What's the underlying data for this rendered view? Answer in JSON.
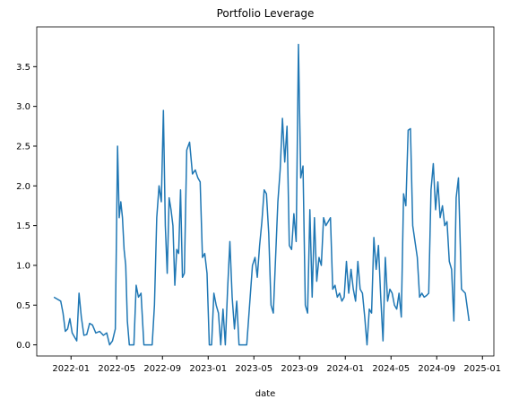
{
  "chart_data": {
    "type": "line",
    "title": "Portfolio Leverage",
    "x_label": "date",
    "x": [
      "2021-11",
      "2021-12",
      "2021-12",
      "2021-12",
      "2021-12",
      "2021-12",
      "2022-01",
      "2022-01",
      "2022-01",
      "2022-01",
      "2022-01",
      "2022-02",
      "2022-02",
      "2022-02",
      "2022-02",
      "2022-03",
      "2022-03",
      "2022-03",
      "2022-04",
      "2022-04",
      "2022-04",
      "2022-04",
      "2022-05",
      "2022-05",
      "2022-05",
      "2022-05",
      "2022-05",
      "2022-05",
      "2022-05",
      "2022-06",
      "2022-06",
      "2022-06",
      "2022-06",
      "2022-06",
      "2022-07",
      "2022-07",
      "2022-07",
      "2022-07",
      "2022-08",
      "2022-08",
      "2022-08",
      "2022-08",
      "2022-08",
      "2022-09",
      "2022-09",
      "2022-09",
      "2022-09",
      "2022-09",
      "2022-09",
      "2022-10",
      "2022-10",
      "2022-10",
      "2022-10",
      "2022-10",
      "2022-10",
      "2022-11",
      "2022-11",
      "2022-11",
      "2022-11",
      "2022-12",
      "2022-12",
      "2022-12",
      "2022-12",
      "2022-12",
      "2023-01",
      "2023-01",
      "2023-01",
      "2023-01",
      "2023-01",
      "2023-02",
      "2023-02",
      "2023-02",
      "2023-02",
      "2023-02",
      "2023-03",
      "2023-03",
      "2023-03",
      "2023-03",
      "2023-03",
      "2023-04",
      "2023-04",
      "2023-04",
      "2023-04",
      "2023-05",
      "2023-05",
      "2023-05",
      "2023-05",
      "2023-05",
      "2023-06",
      "2023-06",
      "2023-06",
      "2023-06",
      "2023-06",
      "2023-07",
      "2023-07",
      "2023-07",
      "2023-07",
      "2023-07",
      "2023-08",
      "2023-08",
      "2023-08",
      "2023-08",
      "2023-08",
      "2023-09",
      "2023-09",
      "2023-09",
      "2023-09",
      "2023-09",
      "2023-10",
      "2023-10",
      "2023-10",
      "2023-10",
      "2023-10",
      "2023-11",
      "2023-11",
      "2023-11",
      "2023-11",
      "2023-11",
      "2023-12",
      "2023-12",
      "2023-12",
      "2023-12",
      "2023-12",
      "2024-01",
      "2024-01",
      "2024-01",
      "2024-01",
      "2024-01",
      "2024-02",
      "2024-02",
      "2024-02",
      "2024-02",
      "2024-02",
      "2024-03",
      "2024-03",
      "2024-03",
      "2024-03",
      "2024-03",
      "2024-04",
      "2024-04",
      "2024-04",
      "2024-04",
      "2024-04",
      "2024-05",
      "2024-05",
      "2024-05",
      "2024-05",
      "2024-05",
      "2024-06",
      "2024-06",
      "2024-06",
      "2024-06",
      "2024-06",
      "2024-07",
      "2024-07",
      "2024-07",
      "2024-07",
      "2024-07",
      "2024-08",
      "2024-08",
      "2024-08",
      "2024-08",
      "2024-08",
      "2024-09",
      "2024-09",
      "2024-09",
      "2024-09",
      "2024-09",
      "2024-10",
      "2024-10",
      "2024-10",
      "2024-10",
      "2024-10",
      "2024-11",
      "2024-11",
      "2024-11"
    ],
    "values": [
      0.6,
      0.55,
      0.4,
      0.17,
      0.2,
      0.33,
      0.15,
      0.1,
      0.05,
      0.65,
      0.35,
      0.12,
      0.13,
      0.27,
      0.25,
      0.15,
      0.17,
      0.12,
      0.15,
      0.0,
      0.05,
      0.2,
      2.5,
      1.6,
      1.8,
      1.6,
      1.2,
      1.0,
      0.3,
      0.0,
      0.0,
      0.0,
      0.75,
      0.6,
      0.65,
      0.0,
      0.0,
      0.0,
      0.0,
      0.5,
      1.6,
      2.0,
      1.8,
      2.95,
      1.5,
      0.9,
      1.85,
      1.7,
      1.5,
      0.75,
      1.2,
      1.15,
      1.95,
      0.85,
      0.9,
      2.45,
      2.55,
      2.15,
      2.2,
      2.1,
      2.05,
      1.1,
      1.15,
      0.9,
      0.0,
      0.0,
      0.65,
      0.5,
      0.4,
      0.0,
      0.45,
      0.0,
      0.7,
      1.3,
      0.6,
      0.2,
      0.55,
      0.0,
      0.0,
      0.0,
      0.0,
      0.5,
      1.0,
      1.1,
      0.85,
      1.25,
      1.55,
      1.95,
      1.9,
      1.4,
      0.5,
      0.4,
      1.1,
      1.8,
      2.2,
      2.85,
      2.3,
      2.75,
      1.25,
      1.2,
      1.65,
      1.3,
      3.78,
      2.1,
      2.25,
      0.5,
      0.4,
      1.7,
      0.6,
      1.6,
      0.8,
      1.1,
      1.0,
      1.6,
      1.5,
      1.55,
      1.6,
      0.7,
      0.75,
      0.6,
      0.65,
      0.55,
      0.6,
      1.05,
      0.65,
      0.95,
      0.7,
      0.55,
      1.05,
      0.7,
      0.65,
      0.35,
      0.0,
      0.45,
      0.4,
      1.35,
      0.95,
      1.25,
      0.6,
      0.05,
      1.1,
      0.55,
      0.7,
      0.65,
      0.5,
      0.45,
      0.65,
      0.35,
      1.9,
      1.75,
      2.7,
      2.72,
      1.5,
      1.3,
      1.1,
      0.6,
      0.65,
      0.6,
      0.62,
      0.65,
      1.95,
      2.28,
      1.7,
      2.05,
      1.6,
      1.75,
      1.5,
      1.55,
      1.05,
      0.95,
      0.3,
      1.85,
      2.1,
      0.7,
      0.65,
      0.3
    ],
    "color": "#1f77b4",
    "xlim": [
      "2021-10",
      "2025-02"
    ],
    "xticks": [
      "2022-01",
      "2022-05",
      "2022-09",
      "2023-01",
      "2023-05",
      "2023-09",
      "2024-01",
      "2024-05",
      "2024-09",
      "2025-01"
    ],
    "ylim": [
      -0.14,
      4.0
    ],
    "yticks": [
      {
        "value": 0,
        "label": "0.0"
      },
      0.5,
      {
        "value": 1,
        "label": "1.0"
      },
      1.5,
      {
        "value": 2,
        "label": "2.0"
      },
      2.5,
      {
        "value": 3,
        "label": "3.0"
      },
      3.5
    ],
    "grid": false
  }
}
